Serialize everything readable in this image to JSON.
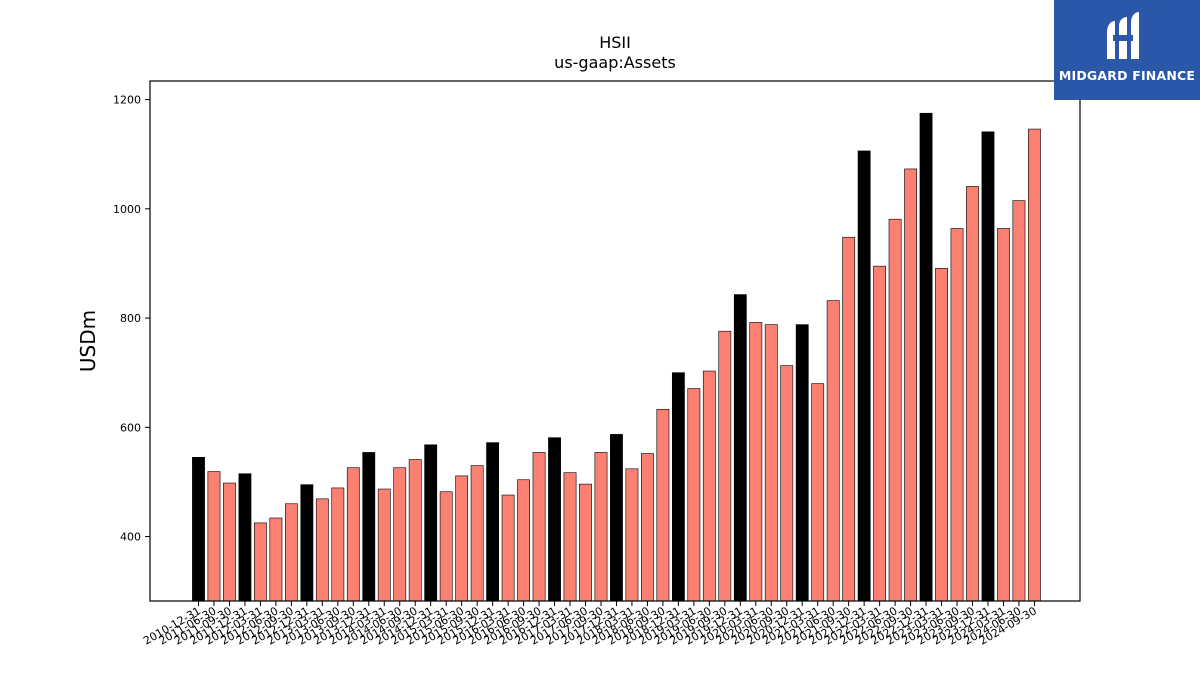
{
  "logo": {
    "text": "MIDGARD FINANCE",
    "background": "#2a57a8"
  },
  "chart_data": {
    "type": "bar",
    "title": "HSII",
    "subtitle": "us-gaap:Assets",
    "xlabel": "",
    "ylabel": "USDm",
    "ylim": [
      282,
      1234
    ],
    "yticks": [
      400,
      600,
      800,
      1000,
      1200
    ],
    "grid": false,
    "colors": {
      "annual": "#000000",
      "quarterly": "#fa8072"
    },
    "categories": [
      "2010-12-31",
      "2011-06-30",
      "2011-09-30",
      "2011-12-31",
      "2012-03-31",
      "2012-06-30",
      "2012-09-30",
      "2012-12-31",
      "2013-03-31",
      "2013-06-30",
      "2013-09-30",
      "2013-12-31",
      "2014-03-31",
      "2014-06-30",
      "2014-09-30",
      "2014-12-31",
      "2015-03-31",
      "2015-06-30",
      "2015-09-30",
      "2015-12-31",
      "2016-03-31",
      "2016-06-30",
      "2016-09-30",
      "2016-12-31",
      "2017-03-31",
      "2017-06-30",
      "2017-09-30",
      "2017-12-31",
      "2018-03-31",
      "2018-06-30",
      "2018-09-30",
      "2018-12-31",
      "2019-03-31",
      "2019-06-30",
      "2019-09-30",
      "2019-12-31",
      "2020-03-31",
      "2020-06-30",
      "2020-09-30",
      "2020-12-31",
      "2021-03-31",
      "2021-06-30",
      "2021-09-30",
      "2021-12-31",
      "2022-03-31",
      "2022-06-30",
      "2022-09-30",
      "2022-12-31",
      "2023-03-31",
      "2023-06-30",
      "2023-09-30",
      "2023-12-31",
      "2024-03-31",
      "2024-06-30",
      "2024-09-30"
    ],
    "values": [
      545,
      519,
      498,
      515,
      425,
      434,
      460,
      495,
      469,
      489,
      526,
      554,
      487,
      526,
      541,
      568,
      482,
      511,
      530,
      572,
      476,
      504,
      554,
      581,
      517,
      496,
      554,
      587,
      524,
      552,
      633,
      700,
      671,
      703,
      776,
      843,
      792,
      788,
      713,
      788,
      680,
      832,
      948,
      1106,
      895,
      981,
      1073,
      1175,
      891,
      964,
      1041,
      1141,
      964,
      1015,
      1146
    ],
    "annual": [
      true,
      false,
      false,
      true,
      false,
      false,
      false,
      true,
      false,
      false,
      false,
      true,
      false,
      false,
      false,
      true,
      false,
      false,
      false,
      true,
      false,
      false,
      false,
      true,
      false,
      false,
      false,
      true,
      false,
      false,
      false,
      true,
      false,
      false,
      false,
      true,
      false,
      false,
      false,
      true,
      false,
      false,
      false,
      true,
      false,
      false,
      false,
      true,
      false,
      false,
      false,
      true,
      false,
      false,
      false
    ]
  }
}
